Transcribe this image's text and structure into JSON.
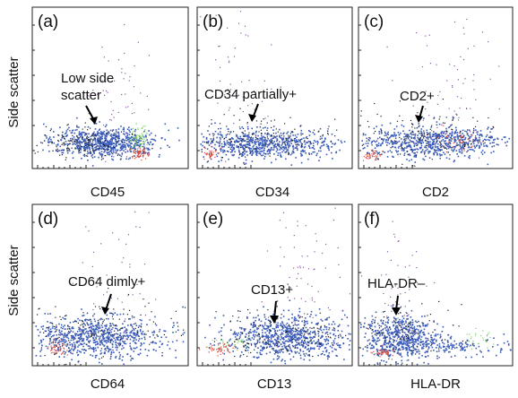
{
  "chart_data": {
    "type": "scatter",
    "y_axis_label": "Side scatter",
    "colors": {
      "main_population": "#3a5bb8",
      "red_population": "#d9453a",
      "green_population": "#7fcf6a",
      "black_events": "#1a1a1a",
      "purple_events": "#8a5aa0"
    },
    "panels": [
      {
        "letter": "(a)",
        "xlabel": "CD45",
        "annotation": [
          "Low side",
          "scatter"
        ]
      },
      {
        "letter": "(b)",
        "xlabel": "CD34",
        "annotation": [
          "CD34 partially+"
        ]
      },
      {
        "letter": "(c)",
        "xlabel": "CD2",
        "annotation": [
          "CD2+"
        ]
      },
      {
        "letter": "(d)",
        "xlabel": "CD64",
        "annotation": [
          "CD64 dimly+"
        ]
      },
      {
        "letter": "(e)",
        "xlabel": "CD13",
        "annotation": [
          "CD13+"
        ]
      },
      {
        "letter": "(f)",
        "xlabel": "HLA-DR",
        "annotation": [
          "HLA-DR–"
        ]
      }
    ]
  }
}
